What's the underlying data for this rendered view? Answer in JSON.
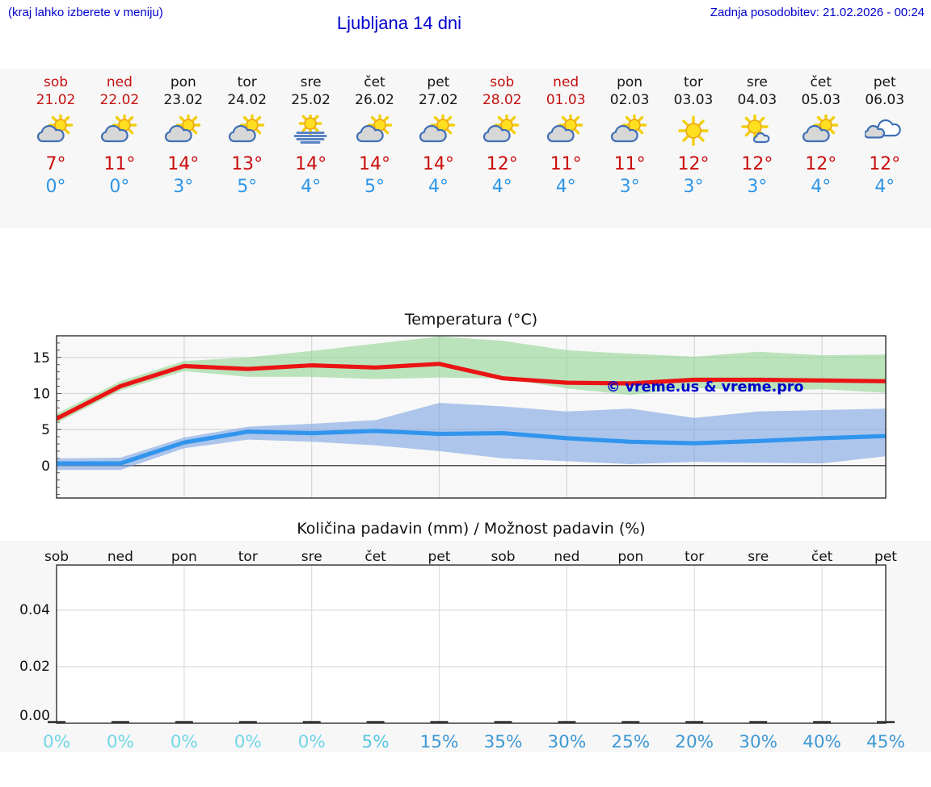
{
  "header": {
    "note": "(kraj lahko izberete v meniju)",
    "title": "Ljubljana 14 dni",
    "updated": "Zadnja posodobitev: 21.02.2026 - 00:24"
  },
  "colors": {
    "link_blue": "#0000cc",
    "weekend_red": "#c50f0f",
    "high_temp_red": "#cb0d0d",
    "low_temp_blue": "#2e96e8",
    "band_background": "#f7f7f7",
    "max_line": "#ea1414",
    "min_line": "#3195ee",
    "max_band": "#93d693",
    "min_band": "#7ba4e3"
  },
  "forecast": {
    "days": [
      {
        "name": "sob",
        "date": "21.02",
        "weekend": true,
        "icon": "partly-cloudy",
        "high": "7°",
        "low": "0°"
      },
      {
        "name": "ned",
        "date": "22.02",
        "weekend": true,
        "icon": "partly-cloudy",
        "high": "11°",
        "low": "0°"
      },
      {
        "name": "pon",
        "date": "23.02",
        "weekend": false,
        "icon": "partly-cloudy",
        "high": "14°",
        "low": "3°"
      },
      {
        "name": "tor",
        "date": "24.02",
        "weekend": false,
        "icon": "partly-cloudy",
        "high": "13°",
        "low": "5°"
      },
      {
        "name": "sre",
        "date": "25.02",
        "weekend": false,
        "icon": "fog-sun",
        "high": "14°",
        "low": "4°"
      },
      {
        "name": "čet",
        "date": "26.02",
        "weekend": false,
        "icon": "partly-cloudy",
        "high": "14°",
        "low": "5°"
      },
      {
        "name": "pet",
        "date": "27.02",
        "weekend": false,
        "icon": "partly-cloudy",
        "high": "14°",
        "low": "4°"
      },
      {
        "name": "sob",
        "date": "28.02",
        "weekend": true,
        "icon": "partly-cloudy",
        "high": "12°",
        "low": "4°"
      },
      {
        "name": "ned",
        "date": "01.03",
        "weekend": true,
        "icon": "partly-cloudy",
        "high": "11°",
        "low": "4°"
      },
      {
        "name": "pon",
        "date": "02.03",
        "weekend": false,
        "icon": "partly-cloudy",
        "high": "11°",
        "low": "3°"
      },
      {
        "name": "tor",
        "date": "03.03",
        "weekend": false,
        "icon": "sunny",
        "high": "12°",
        "low": "3°"
      },
      {
        "name": "sre",
        "date": "04.03",
        "weekend": false,
        "icon": "sun-small-cloud",
        "high": "12°",
        "low": "3°"
      },
      {
        "name": "čet",
        "date": "05.03",
        "weekend": false,
        "icon": "partly-cloudy",
        "high": "12°",
        "low": "4°"
      },
      {
        "name": "pet",
        "date": "06.03",
        "weekend": false,
        "icon": "cloudy",
        "high": "12°",
        "low": "4°"
      }
    ]
  },
  "chart_data": [
    {
      "type": "line",
      "title": "Temperatura (°C)",
      "x_days": [
        "sob",
        "ned",
        "pon",
        "tor",
        "sre",
        "čet",
        "pet",
        "sob",
        "ned",
        "pon",
        "tor",
        "sre",
        "čet",
        "pet"
      ],
      "ylim": [
        -4.5,
        18
      ],
      "yticks": [
        0,
        5,
        10,
        15
      ],
      "grid": true,
      "watermark": "© vreme.us & vreme.pro",
      "series": [
        {
          "name": "max temperature",
          "color": "#ea1414",
          "band_color": "#93d693",
          "values": [
            6.5,
            11.0,
            13.8,
            13.4,
            13.9,
            13.6,
            14.1,
            12.1,
            11.5,
            11.4,
            11.9,
            11.9,
            11.8,
            11.7
          ],
          "band_upper": [
            7.2,
            11.7,
            14.5,
            15.0,
            15.9,
            16.9,
            17.9,
            17.3,
            16.0,
            15.5,
            15.1,
            15.8,
            15.3,
            15.4
          ],
          "band_lower": [
            5.9,
            10.4,
            13.1,
            12.3,
            12.3,
            12.0,
            12.2,
            12.1,
            10.7,
            9.8,
            10.8,
            10.3,
            10.6,
            10.1
          ]
        },
        {
          "name": "min temperature",
          "color": "#3195ee",
          "band_color": "#7ba4e3",
          "values": [
            0.3,
            0.3,
            3.2,
            4.7,
            4.5,
            4.8,
            4.4,
            4.5,
            3.8,
            3.3,
            3.1,
            3.4,
            3.8,
            4.1
          ],
          "band_upper": [
            1.0,
            1.1,
            3.9,
            5.4,
            5.8,
            6.3,
            8.7,
            8.2,
            7.5,
            7.9,
            6.6,
            7.5,
            7.7,
            7.9
          ],
          "band_lower": [
            -0.6,
            -0.6,
            2.4,
            3.6,
            3.3,
            2.8,
            2.0,
            1.0,
            0.6,
            0.2,
            0.5,
            0.4,
            0.3,
            1.3
          ]
        }
      ]
    },
    {
      "type": "bar",
      "title": "Količina padavin (mm) / Možnost padavin (%)",
      "categories": [
        "sob",
        "ned",
        "pon",
        "tor",
        "sre",
        "čet",
        "pet",
        "sob",
        "ned",
        "pon",
        "tor",
        "sre",
        "čet",
        "pet"
      ],
      "values": [
        0,
        0,
        0,
        0,
        0,
        0,
        0,
        0,
        0,
        0,
        0,
        0,
        0,
        0
      ],
      "ylim": [
        0,
        0.056
      ],
      "ytick_labels": [
        "0.00",
        "0.02",
        "0.04"
      ],
      "percent_labels": [
        "0%",
        "0%",
        "0%",
        "0%",
        "0%",
        "5%",
        "15%",
        "35%",
        "30%",
        "25%",
        "20%",
        "30%",
        "40%",
        "45%"
      ],
      "percent_levels": [
        0,
        0,
        0,
        0,
        0,
        1,
        2,
        2,
        2,
        2,
        2,
        2,
        2,
        2
      ],
      "percent_colors": [
        "#71d6e8",
        "#58c7e3",
        "#3f98d3"
      ]
    }
  ]
}
